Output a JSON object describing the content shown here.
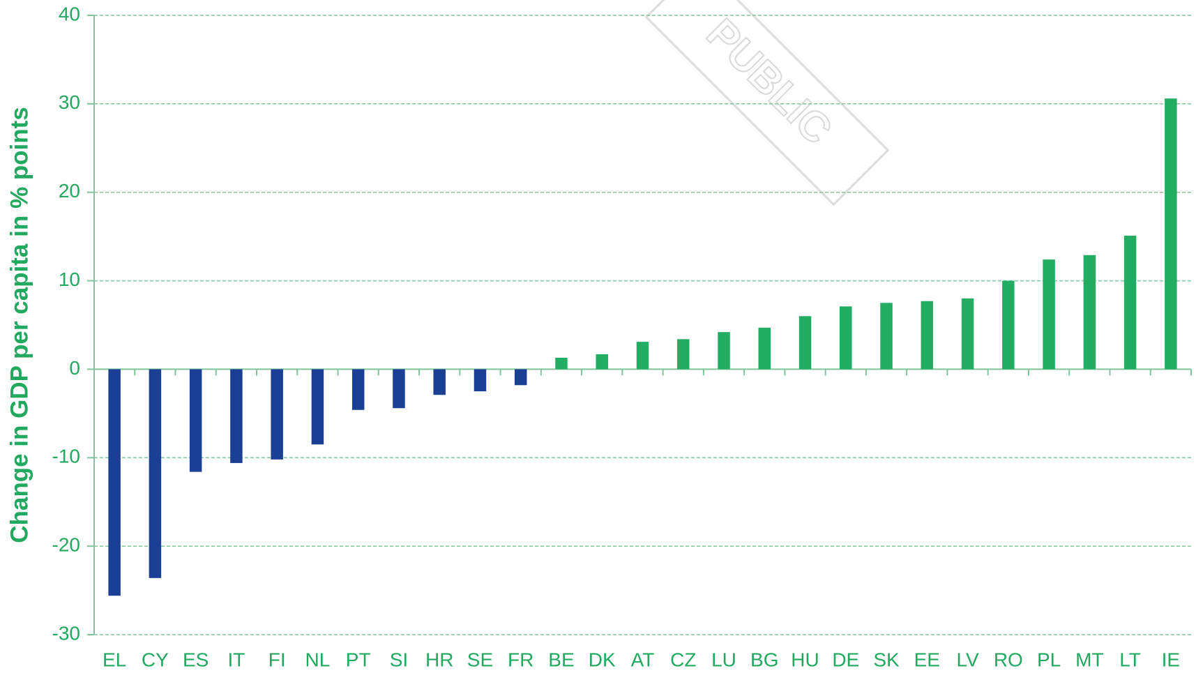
{
  "chart_data": {
    "type": "bar",
    "y_axis_label": "Change in GDP per capita in % points",
    "watermark": "PUBLIC",
    "categories": [
      "EL",
      "CY",
      "ES",
      "IT",
      "FI",
      "NL",
      "PT",
      "SI",
      "HR",
      "SE",
      "FR",
      "BE",
      "DK",
      "AT",
      "CZ",
      "LU",
      "BG",
      "HU",
      "DE",
      "SK",
      "EE",
      "LV",
      "RO",
      "PL",
      "MT",
      "LT",
      "IE"
    ],
    "values": [
      -25.6,
      -23.6,
      -11.6,
      -10.6,
      -10.2,
      -8.5,
      -4.6,
      -4.4,
      -2.9,
      -2.5,
      -1.8,
      1.3,
      1.7,
      3.1,
      3.4,
      4.2,
      4.7,
      6.0,
      7.1,
      7.5,
      7.7,
      8.0,
      10.0,
      12.4,
      12.9,
      15.1,
      30.6
    ],
    "negative_color": "#1a3f94",
    "positive_color": "#22ad62",
    "ylim": [
      -30,
      40
    ],
    "yticks": [
      -30,
      -20,
      -10,
      0,
      10,
      20,
      30,
      40
    ],
    "grid": true
  }
}
